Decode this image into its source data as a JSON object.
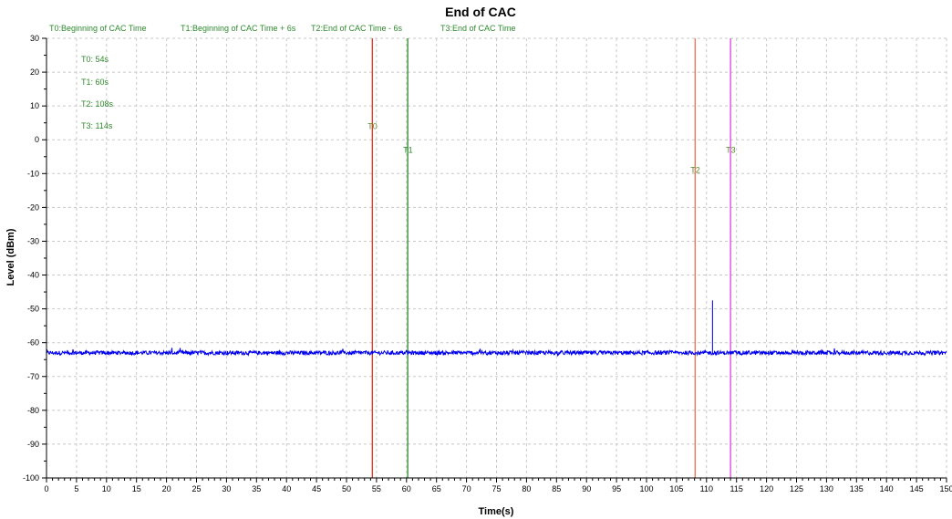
{
  "chart_data": {
    "type": "line",
    "title": "End of CAC",
    "xlabel": "Time(s)",
    "ylabel": "Level (dBm)",
    "xlim": [
      0,
      150
    ],
    "ylim": [
      -100,
      30
    ],
    "xticks": [
      0,
      5,
      10,
      15,
      20,
      25,
      30,
      35,
      40,
      45,
      50,
      55,
      60,
      65,
      70,
      75,
      80,
      85,
      90,
      95,
      100,
      105,
      110,
      115,
      120,
      125,
      130,
      135,
      140,
      145,
      150
    ],
    "yticks": [
      30,
      20,
      10,
      0,
      -10,
      -20,
      -30,
      -40,
      -50,
      -60,
      -70,
      -80,
      -90,
      -100
    ],
    "grid": true,
    "series": [
      {
        "color": "#0000ee",
        "baseline": -63,
        "noise_amplitude": 0.6,
        "x": [
          0,
          150
        ],
        "y": [
          -63,
          -63
        ],
        "spikes": [
          {
            "x": 111,
            "y": -47.5
          }
        ]
      }
    ],
    "legend_top": [
      "T0:Beginning of CAC Time",
      "T1:Beginning of CAC Time + 6s",
      "T2:End of CAC Time - 6s",
      "T3:End of CAC Time"
    ],
    "annotations": [
      "T0: 54s",
      "T1: 60s",
      "T2: 108s",
      "T3: 114s"
    ],
    "markers": [
      {
        "label": "T0",
        "x": 54.3,
        "label_y": 4,
        "color": "#e8301c",
        "label_color": "#5a8a2a"
      },
      {
        "label": "T1",
        "x": 60.2,
        "label_y": -3,
        "color": "#2a8a2a",
        "label_color": "#2a8a2a"
      },
      {
        "label": "T2",
        "x": 108.1,
        "label_y": -9,
        "color": "#f07050",
        "label_color": "#5a8a2a"
      },
      {
        "label": "T3",
        "x": 114.0,
        "label_y": -3,
        "color": "#e040e0",
        "label_color": "#5a8a2a"
      }
    ]
  }
}
